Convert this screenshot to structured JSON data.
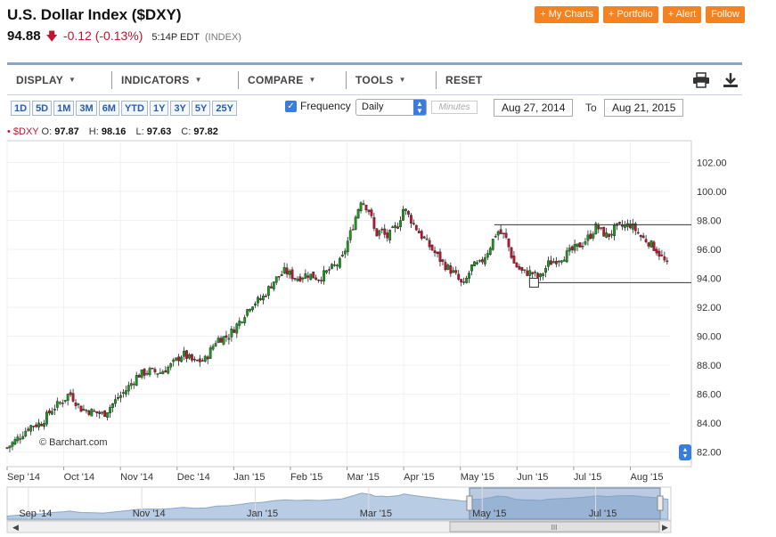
{
  "header": {
    "title": "U.S. Dollar Index ($DXY)",
    "last": "94.88",
    "change": "-0.12 (-0.13%)",
    "time": "5:14P EDT",
    "index_label": "(INDEX)"
  },
  "actions": [
    "+ My Charts",
    "+ Portfolio",
    "+ Alert",
    "Follow"
  ],
  "menu": {
    "items": [
      "DISPLAY",
      "INDICATORS",
      "COMPARE",
      "TOOLS",
      "RESET"
    ],
    "print_icon": "print-icon",
    "download_icon": "download-icon"
  },
  "ranges": [
    "1D",
    "5D",
    "1M",
    "3M",
    "6M",
    "YTD",
    "1Y",
    "3Y",
    "5Y",
    "25Y"
  ],
  "frequency": {
    "label": "Frequency",
    "checked": true,
    "value": "Daily",
    "minutes_placeholder": "Minutes"
  },
  "dates": {
    "from": "Aug 27, 2014",
    "to_label": "To",
    "to": "Aug 21, 2015"
  },
  "ohlc": {
    "symbol": "• $DXY",
    "o_label": "O:",
    "o": "97.87",
    "h_label": "H:",
    "h": "98.16",
    "l_label": "L:",
    "l": "97.63",
    "c_label": "C:",
    "c": "97.82"
  },
  "credit": "© Barchart.com",
  "colors": {
    "up": "#1a9a1a",
    "down": "#c8102e",
    "accent": "#f58220",
    "nav_fill": "#b8cce4",
    "nav_selected": "#7f9fc8"
  },
  "chart_data": {
    "type": "candlestick",
    "y_ticks": [
      "82.00",
      "84.00",
      "86.00",
      "88.00",
      "90.00",
      "92.00",
      "94.00",
      "96.00",
      "98.00",
      "100.00",
      "102.00"
    ],
    "ylim": [
      81,
      103.5
    ],
    "x_ticks": [
      "Sep '14",
      "Oct '14",
      "Nov '14",
      "Dec '14",
      "Jan '15",
      "Feb '15",
      "Mar '15",
      "Apr '15",
      "May '15",
      "Jun '15",
      "Jul '15",
      "Aug '15"
    ],
    "x_tick_pos": [
      0.5,
      1.5,
      2.5,
      3.5,
      4.5,
      5.5,
      6.5,
      7.5,
      8.5,
      9.5,
      10.5,
      11.5
    ],
    "xlim": [
      0.5,
      12.2
    ],
    "close_series": [
      [
        0.5,
        82.3
      ],
      [
        0.7,
        83.0
      ],
      [
        0.9,
        83.8
      ],
      [
        1.1,
        84.0
      ],
      [
        1.3,
        85.0
      ],
      [
        1.5,
        85.6
      ],
      [
        1.6,
        86.1
      ],
      [
        1.8,
        85.0
      ],
      [
        2.0,
        84.8
      ],
      [
        2.2,
        84.6
      ],
      [
        2.4,
        85.5
      ],
      [
        2.6,
        86.3
      ],
      [
        2.8,
        87.3
      ],
      [
        3.0,
        87.6
      ],
      [
        3.2,
        87.5
      ],
      [
        3.4,
        88.0
      ],
      [
        3.6,
        88.8
      ],
      [
        3.8,
        88.2
      ],
      [
        4.0,
        88.4
      ],
      [
        4.2,
        89.8
      ],
      [
        4.4,
        90.0
      ],
      [
        4.6,
        91.0
      ],
      [
        4.8,
        92.2
      ],
      [
        5.0,
        92.6
      ],
      [
        5.2,
        93.8
      ],
      [
        5.4,
        94.5
      ],
      [
        5.6,
        94.0
      ],
      [
        5.8,
        94.3
      ],
      [
        6.0,
        94.0
      ],
      [
        6.2,
        94.6
      ],
      [
        6.4,
        95.2
      ],
      [
        6.6,
        97.6
      ],
      [
        6.75,
        99.5
      ],
      [
        6.9,
        98.6
      ],
      [
        7.0,
        97.0
      ],
      [
        7.1,
        97.3
      ],
      [
        7.2,
        96.8
      ],
      [
        7.4,
        97.7
      ],
      [
        7.5,
        98.9
      ],
      [
        7.6,
        98.2
      ],
      [
        7.8,
        97.0
      ],
      [
        8.0,
        96.0
      ],
      [
        8.2,
        95.0
      ],
      [
        8.4,
        94.3
      ],
      [
        8.55,
        93.4
      ],
      [
        8.7,
        94.8
      ],
      [
        8.85,
        95.0
      ],
      [
        9.0,
        96.0
      ],
      [
        9.15,
        97.3
      ],
      [
        9.3,
        96.8
      ],
      [
        9.45,
        95.0
      ],
      [
        9.6,
        94.4
      ],
      [
        9.75,
        94.4
      ],
      [
        9.9,
        94.0
      ],
      [
        10.05,
        95.0
      ],
      [
        10.2,
        95.3
      ],
      [
        10.35,
        95.6
      ],
      [
        10.5,
        96.0
      ],
      [
        10.65,
        96.4
      ],
      [
        10.8,
        97.0
      ],
      [
        10.9,
        97.6
      ],
      [
        11.0,
        97.2
      ],
      [
        11.1,
        96.9
      ],
      [
        11.25,
        97.5
      ],
      [
        11.4,
        97.6
      ],
      [
        11.5,
        97.7
      ],
      [
        11.6,
        97.3
      ],
      [
        11.7,
        96.8
      ],
      [
        11.8,
        96.6
      ],
      [
        11.95,
        96.0
      ],
      [
        12.05,
        95.5
      ],
      [
        12.15,
        94.88
      ]
    ],
    "channel_lines": [
      {
        "x1": 9.1,
        "y1": 97.7,
        "x2": 12.2,
        "y2": 97.7
      },
      {
        "x1": 9.85,
        "y1": 93.7,
        "x2": 12.2,
        "y2": 93.7
      }
    ],
    "marker_box": {
      "x": 9.8,
      "y": 93.7
    },
    "navigator": {
      "ticks": [
        "Sep '14",
        "Nov '14",
        "Jan '15",
        "Mar '15",
        "May '15",
        "Jul '15"
      ],
      "selected_from_label": "May '15"
    }
  }
}
